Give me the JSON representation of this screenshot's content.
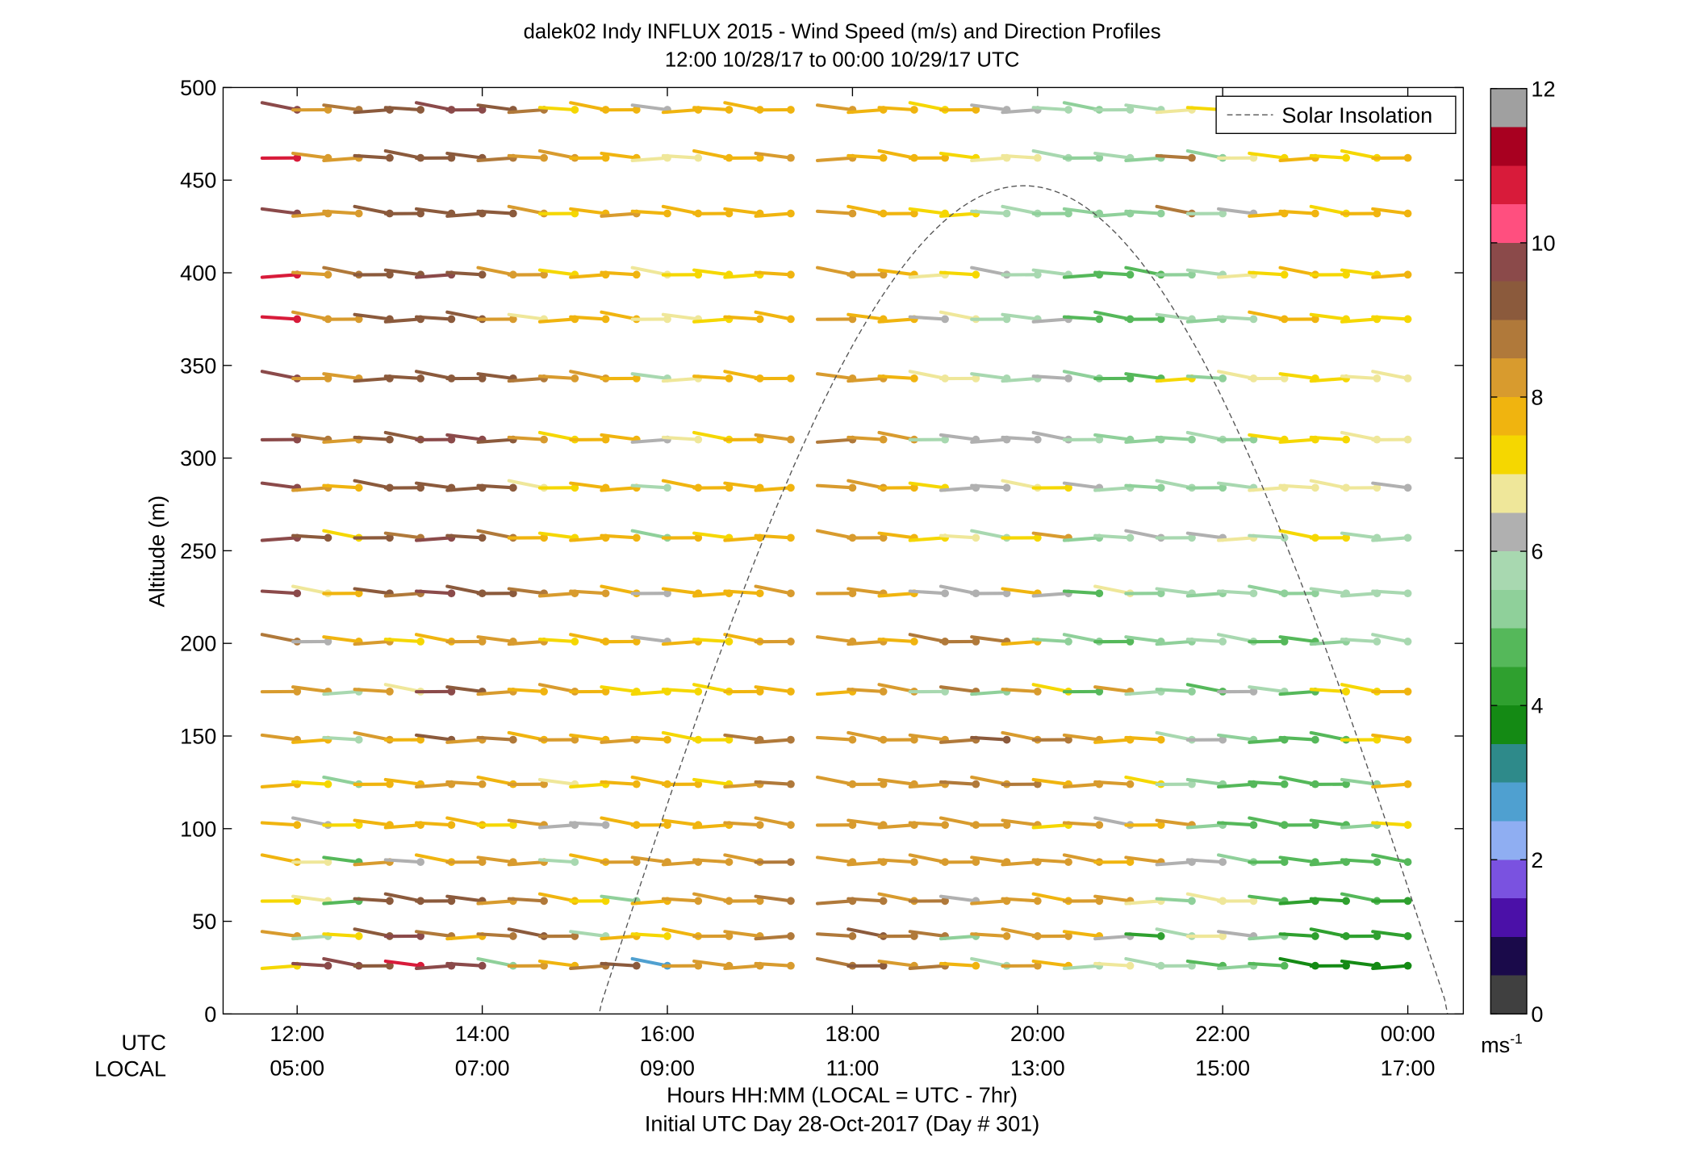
{
  "chart_data": {
    "type": "scatter",
    "title": "dalek02 Indy INFLUX 2015 - Wind Speed (m/s) and Direction Profiles",
    "subtitle": "12:00 10/28/17 to 00:00 10/29/17  UTC",
    "ylabel": "Altitude (m)",
    "ylim": [
      0,
      500
    ],
    "yticks": [
      "0",
      "50",
      "100",
      "150",
      "200",
      "250",
      "300",
      "350",
      "400",
      "450",
      "500"
    ],
    "xlim": [
      11.2,
      24.6
    ],
    "xticks_utc": [
      "12:00",
      "14:00",
      "16:00",
      "18:00",
      "20:00",
      "22:00",
      "00:00"
    ],
    "xticks_local": [
      "05:00",
      "07:00",
      "09:00",
      "11:00",
      "13:00",
      "15:00",
      "17:00"
    ],
    "xlabel_utc": "UTC",
    "xlabel_local": "LOCAL",
    "xlabel": "Hours HH:MM  (LOCAL = UTC - 7hr)",
    "xlabel2": "Initial UTC Day 28-Oct-2017 (Day # 301)",
    "legend": {
      "position": "top-right",
      "entries": [
        "Solar Insolation"
      ]
    },
    "colorbar": {
      "ticks": [
        "0",
        "2",
        "4",
        "6",
        "8",
        "10",
        "12"
      ],
      "range": [
        0,
        12
      ],
      "unit_base": "ms",
      "unit_exp": "-1"
    },
    "altitudes": [
      26,
      42,
      61,
      82,
      102,
      124,
      148,
      174,
      201,
      227,
      257,
      284,
      310,
      343,
      375,
      399,
      432,
      462,
      488
    ],
    "solar_insolation": {
      "peak_time": 19.85,
      "peak_altitude": 447,
      "half_width": 4.6,
      "line_style": "dashed"
    },
    "wind_profiles": [
      {
        "time": "12:00",
        "speed": [
          7.0,
          8.0,
          7.0,
          7.5,
          7.5,
          7.5,
          8.0,
          8.0,
          8.5,
          9.5,
          9.5,
          9.5,
          9.5,
          9.5,
          10.5,
          10.5,
          9.5,
          10.5,
          9.5
        ]
      },
      {
        "time": "12:20",
        "speed": [
          9.5,
          5.5,
          6.5,
          6.5,
          6.0,
          7.0,
          7.5,
          8.0,
          6.0,
          6.5,
          9.0,
          8.0,
          8.5,
          8.0,
          8.0,
          8.0,
          8.0,
          8.0,
          8.0
        ]
      },
      {
        "time": "12:40",
        "speed": [
          9.5,
          7.0,
          4.5,
          4.5,
          7.0,
          5.0,
          5.5,
          5.5,
          7.5,
          7.5,
          7.0,
          7.5,
          8.0,
          8.0,
          8.0,
          8.5,
          8.0,
          8.0,
          8.5
        ]
      },
      {
        "time": "13:00",
        "speed": [
          9.0,
          9.0,
          9.0,
          8.0,
          7.5,
          7.5,
          8.0,
          8.0,
          8.0,
          9.0,
          9.0,
          9.0,
          9.0,
          9.0,
          9.0,
          9.0,
          9.0,
          9.0,
          9.0
        ]
      },
      {
        "time": "13:20",
        "speed": [
          10.5,
          9.5,
          9.0,
          6.0,
          7.5,
          7.5,
          7.5,
          6.5,
          7.0,
          8.5,
          8.5,
          9.0,
          9.0,
          9.0,
          9.0,
          9.0,
          9.0,
          9.0,
          9.0
        ]
      },
      {
        "time": "13:40",
        "speed": [
          9.5,
          8.5,
          9.0,
          7.5,
          7.5,
          8.0,
          9.0,
          9.5,
          7.5,
          9.5,
          9.5,
          9.0,
          9.5,
          9.0,
          9.0,
          9.5,
          9.0,
          9.0,
          9.5
        ]
      },
      {
        "time": "14:00",
        "speed": [
          9.5,
          7.5,
          9.0,
          8.0,
          7.5,
          8.0,
          8.0,
          9.0,
          8.0,
          9.0,
          9.0,
          9.0,
          9.5,
          9.0,
          9.0,
          9.0,
          9.0,
          9.0,
          9.5
        ]
      },
      {
        "time": "14:20",
        "speed": [
          5.0,
          8.5,
          8.0,
          8.0,
          7.0,
          7.5,
          8.5,
          8.0,
          8.0,
          9.0,
          8.5,
          9.0,
          9.0,
          9.0,
          8.0,
          8.0,
          9.0,
          8.5,
          9.0
        ]
      },
      {
        "time": "14:40",
        "speed": [
          8.0,
          9.0,
          8.5,
          8.0,
          8.0,
          8.0,
          7.5,
          7.5,
          8.0,
          8.5,
          7.5,
          6.5,
          8.0,
          8.5,
          6.5,
          8.0,
          8.0,
          8.0,
          8.5
        ]
      },
      {
        "time": "15:00",
        "speed": [
          7.5,
          8.5,
          7.5,
          5.5,
          6.0,
          6.5,
          8.0,
          8.0,
          7.0,
          8.0,
          7.0,
          7.0,
          7.0,
          8.0,
          7.5,
          7.0,
          7.0,
          8.0,
          7.0
        ]
      },
      {
        "time": "15:20",
        "speed": [
          8.5,
          5.5,
          7.0,
          7.5,
          6.0,
          7.0,
          7.5,
          7.5,
          7.5,
          8.0,
          7.5,
          7.5,
          7.5,
          8.0,
          7.5,
          7.5,
          7.5,
          7.5,
          7.5
        ]
      },
      {
        "time": "15:40",
        "speed": [
          9.0,
          7.5,
          5.0,
          8.0,
          7.5,
          7.5,
          8.0,
          7.0,
          7.5,
          7.5,
          7.5,
          7.5,
          7.5,
          7.5,
          7.5,
          7.5,
          8.0,
          7.5,
          7.5
        ]
      },
      {
        "time": "16:00",
        "speed": [
          2.5,
          7.0,
          7.5,
          8.0,
          7.5,
          7.5,
          7.5,
          7.0,
          6.0,
          6.0,
          5.0,
          5.5,
          6.0,
          5.5,
          6.5,
          6.5,
          7.5,
          6.5,
          6.0
        ]
      },
      {
        "time": "16:20",
        "speed": [
          8.0,
          7.5,
          8.0,
          8.0,
          7.5,
          7.5,
          7.0,
          7.0,
          7.5,
          7.5,
          7.5,
          7.5,
          6.5,
          6.5,
          6.5,
          7.0,
          7.5,
          6.5,
          7.5
        ]
      },
      {
        "time": "16:40",
        "speed": [
          8.0,
          8.0,
          8.0,
          8.0,
          7.5,
          7.0,
          7.0,
          7.0,
          7.0,
          7.5,
          7.0,
          7.5,
          7.0,
          7.5,
          7.0,
          7.0,
          7.5,
          7.5,
          7.5
        ]
      },
      {
        "time": "17:00",
        "speed": [
          8.0,
          8.0,
          8.0,
          8.0,
          8.0,
          8.0,
          8.5,
          7.5,
          7.5,
          7.5,
          7.5,
          7.5,
          7.5,
          7.5,
          7.5,
          7.0,
          7.5,
          7.5,
          7.5
        ]
      },
      {
        "time": "17:20",
        "speed": [
          8.0,
          8.5,
          8.5,
          8.5,
          8.0,
          8.5,
          8.5,
          7.5,
          8.0,
          8.0,
          7.5,
          7.5,
          8.0,
          7.5,
          7.5,
          7.5,
          7.5,
          8.0,
          7.5
        ]
      },
      {
        "time": "18:00",
        "speed": [
          8.5,
          8.5,
          8.5,
          8.0,
          8.0,
          8.0,
          8.0,
          7.5,
          8.0,
          8.0,
          8.0,
          8.0,
          8.5,
          8.0,
          8.0,
          8.0,
          8.0,
          8.0,
          8.0
        ]
      },
      {
        "time": "18:20",
        "speed": [
          9.0,
          9.0,
          8.5,
          8.0,
          8.0,
          8.0,
          8.0,
          8.0,
          8.0,
          8.0,
          8.0,
          8.0,
          8.0,
          8.0,
          7.5,
          8.0,
          7.5,
          7.5,
          7.5
        ]
      },
      {
        "time": "18:40",
        "speed": [
          8.0,
          8.5,
          8.0,
          8.0,
          8.0,
          8.0,
          8.0,
          8.0,
          7.5,
          7.5,
          7.5,
          7.5,
          8.0,
          7.5,
          7.5,
          7.5,
          7.5,
          7.5,
          7.5
        ]
      },
      {
        "time": "19:00",
        "speed": [
          8.5,
          8.5,
          8.5,
          8.0,
          8.0,
          8.0,
          8.0,
          5.5,
          8.5,
          6.0,
          7.0,
          7.0,
          5.5,
          6.5,
          6.0,
          6.5,
          7.0,
          7.5,
          7.0
        ]
      },
      {
        "time": "19:20",
        "speed": [
          7.5,
          5.0,
          6.0,
          8.0,
          8.0,
          8.5,
          8.5,
          8.5,
          8.5,
          6.0,
          6.5,
          6.0,
          6.0,
          6.5,
          6.5,
          7.0,
          7.0,
          7.0,
          7.5
        ]
      },
      {
        "time": "19:40",
        "speed": [
          5.5,
          8.0,
          8.0,
          8.0,
          8.0,
          8.0,
          9.0,
          5.0,
          8.5,
          6.0,
          5.5,
          6.0,
          6.0,
          5.5,
          5.5,
          6.0,
          5.5,
          6.5,
          6.0
        ]
      },
      {
        "time": "20:00",
        "speed": [
          8.0,
          8.0,
          8.0,
          8.0,
          8.0,
          8.5,
          8.0,
          8.0,
          7.5,
          7.5,
          7.0,
          6.5,
          6.0,
          5.5,
          5.5,
          5.5,
          5.5,
          6.5,
          6.0
        ]
      },
      {
        "time": "20:20",
        "speed": [
          7.5,
          8.0,
          7.5,
          8.0,
          7.0,
          7.5,
          8.5,
          7.0,
          5.0,
          6.0,
          8.0,
          7.0,
          6.0,
          6.0,
          6.0,
          5.5,
          5.0,
          5.5,
          5.5
        ]
      },
      {
        "time": "20:40",
        "speed": [
          5.5,
          7.5,
          8.0,
          8.0,
          8.0,
          8.0,
          8.0,
          4.5,
          5.0,
          4.5,
          5.0,
          6.0,
          5.5,
          5.0,
          4.5,
          4.5,
          5.0,
          5.0,
          5.0
        ]
      },
      {
        "time": "21:00",
        "speed": [
          6.5,
          6.0,
          8.0,
          7.5,
          6.0,
          8.0,
          7.5,
          8.0,
          4.5,
          6.5,
          5.5,
          5.5,
          5.0,
          4.5,
          4.5,
          4.5,
          5.0,
          5.5,
          5.5
        ]
      },
      {
        "time": "21:20",
        "speed": [
          5.5,
          4.0,
          6.5,
          8.0,
          7.5,
          7.0,
          7.5,
          5.5,
          5.0,
          5.0,
          6.0,
          5.0,
          5.0,
          4.5,
          4.5,
          4.5,
          5.0,
          5.0,
          5.5
        ]
      },
      {
        "time": "21:40",
        "speed": [
          5.5,
          5.5,
          5.0,
          6.0,
          8.0,
          5.5,
          5.5,
          5.0,
          5.0,
          5.5,
          5.5,
          5.5,
          5.0,
          7.0,
          5.5,
          5.0,
          8.5,
          8.5,
          6.5
        ]
      },
      {
        "time": "22:00",
        "speed": [
          4.5,
          6.5,
          6.5,
          6.0,
          5.0,
          5.0,
          6.0,
          4.5,
          5.5,
          5.0,
          6.0,
          5.0,
          5.5,
          5.0,
          5.0,
          5.5,
          5.5,
          5.0,
          7.0
        ]
      },
      {
        "time": "22:20",
        "speed": [
          5.0,
          6.0,
          6.5,
          5.0,
          4.5,
          4.5,
          5.0,
          6.0,
          5.5,
          5.5,
          6.5,
          5.5,
          5.0,
          6.5,
          5.5,
          6.5,
          6.0,
          6.5,
          7.0
        ]
      },
      {
        "time": "22:40",
        "speed": [
          4.5,
          5.0,
          4.5,
          4.5,
          4.5,
          4.5,
          4.5,
          5.5,
          4.5,
          5.0,
          5.5,
          6.5,
          7.0,
          6.5,
          7.5,
          7.0,
          7.5,
          7.0,
          7.0
        ]
      },
      {
        "time": "23:00",
        "speed": [
          3.5,
          4.0,
          4.0,
          4.5,
          4.5,
          4.5,
          4.5,
          4.5,
          4.5,
          5.0,
          7.0,
          6.5,
          7.0,
          7.0,
          7.5,
          7.5,
          7.5,
          7.5,
          7.0
        ]
      },
      {
        "time": "23:20",
        "speed": [
          3.5,
          4.0,
          4.0,
          4.5,
          4.5,
          4.5,
          4.5,
          7.0,
          5.0,
          5.5,
          7.0,
          6.5,
          7.0,
          7.0,
          7.0,
          7.0,
          7.0,
          7.0,
          7.0
        ]
      },
      {
        "time": "23:40",
        "speed": [
          3.5,
          4.0,
          4.5,
          4.5,
          5.0,
          5.0,
          7.0,
          7.0,
          5.5,
          5.5,
          5.5,
          6.5,
          6.5,
          6.5,
          7.0,
          7.0,
          7.5,
          7.0,
          7.0
        ]
      },
      {
        "time": "00:00",
        "speed": [
          3.5,
          4.0,
          4.0,
          4.5,
          7.0,
          7.5,
          7.5,
          7.5,
          5.5,
          5.5,
          5.5,
          6.0,
          6.5,
          6.5,
          7.0,
          7.5,
          7.5,
          7.5,
          7.0
        ]
      }
    ]
  },
  "colors": {
    "colormap": [
      "#404040",
      "#1a0a4a",
      "#4b10a8",
      "#7a52e0",
      "#8faef2",
      "#4fa0d0",
      "#2e8a8a",
      "#148a14",
      "#2fa02f",
      "#55b85a",
      "#8fd09a",
      "#a8d8b0",
      "#b0b0b0",
      "#efe79a",
      "#f5d700",
      "#f0b40f",
      "#d89b2e",
      "#b0793a",
      "#8b5a3c",
      "#8b4a4a",
      "#ff4f7f",
      "#d81b3a",
      "#a80020",
      "#a0a0a0"
    ],
    "curve": "#555555"
  }
}
